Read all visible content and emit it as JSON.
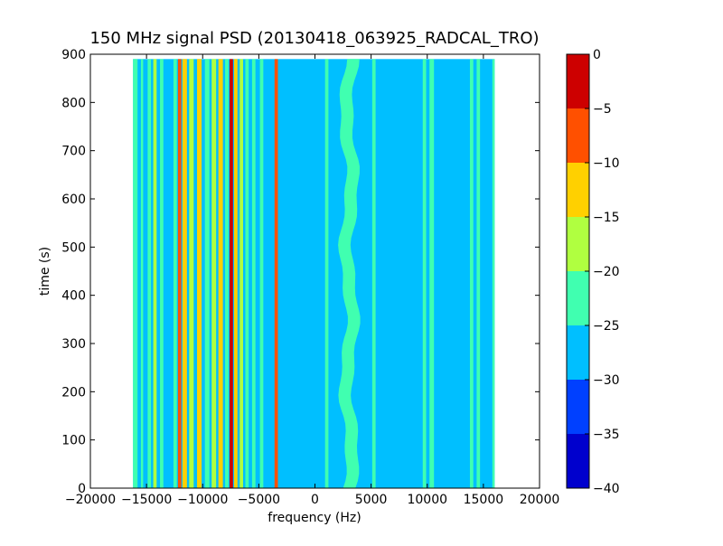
{
  "chart_data": {
    "type": "heatmap",
    "subtype": "filled-contour spectrogram",
    "title": "150 MHz signal PSD (20130418_063925_RADCAL_TRO)",
    "xlabel": "frequency (Hz)",
    "ylabel": "time (s)",
    "xlim": [
      -20000,
      20000
    ],
    "ylim": [
      0,
      900
    ],
    "x_ticks": [
      -20000,
      -15000,
      -10000,
      -5000,
      0,
      5000,
      10000,
      15000,
      20000
    ],
    "x_tick_labels": [
      "−20000",
      "−15000",
      "−10000",
      "−5000",
      "0",
      "5000",
      "10000",
      "15000",
      "20000"
    ],
    "y_ticks": [
      0,
      100,
      200,
      300,
      400,
      500,
      600,
      700,
      800,
      900
    ],
    "y_tick_labels": [
      "0",
      "100",
      "200",
      "300",
      "400",
      "500",
      "600",
      "700",
      "800",
      "900"
    ],
    "data_extent": {
      "freq_min": -16200,
      "freq_max": 16000,
      "time_min": 0,
      "time_max": 890
    },
    "background_level_color": "#00bfff",
    "colorbar": {
      "levels": [
        -40,
        -35,
        -30,
        -25,
        -20,
        -15,
        -10,
        -5,
        0
      ],
      "tick_labels": [
        "0",
        "−5",
        "−10",
        "−15",
        "−20",
        "−25",
        "−30",
        "−35",
        "−40"
      ],
      "colors": [
        "#0000cd",
        "#0040ff",
        "#00bfff",
        "#40ffb0",
        "#b0ff40",
        "#ffd000",
        "#ff5000",
        "#cd0000"
      ]
    },
    "features": [
      {
        "freq_start": -16200,
        "freq_end": -15800,
        "color": "#40ffb0",
        "kind": "band"
      },
      {
        "freq_start": -15500,
        "freq_end": -15300,
        "color": "#40ffb0",
        "kind": "band"
      },
      {
        "freq_start": -14900,
        "freq_end": -14600,
        "color": "#40ffb0",
        "kind": "band"
      },
      {
        "freq_start": -14400,
        "freq_end": -14100,
        "color": "#b0ff40",
        "kind": "band"
      },
      {
        "freq_start": -13800,
        "freq_end": -13500,
        "color": "#40ffb0",
        "kind": "band"
      },
      {
        "freq_start": -12600,
        "freq_end": -12300,
        "color": "#40ffb0",
        "kind": "band"
      },
      {
        "freq_start": -12200,
        "freq_end": -11900,
        "color": "#ff5000",
        "kind": "band"
      },
      {
        "freq_start": -11800,
        "freq_end": -11400,
        "color": "#ffd000",
        "kind": "band"
      },
      {
        "freq_start": -11200,
        "freq_end": -10800,
        "color": "#b0ff40",
        "kind": "band"
      },
      {
        "freq_start": -10500,
        "freq_end": -10100,
        "color": "#ffd000",
        "kind": "band"
      },
      {
        "freq_start": -9800,
        "freq_end": -9400,
        "color": "#40ffb0",
        "kind": "band"
      },
      {
        "freq_start": -9200,
        "freq_end": -8800,
        "color": "#b0ff40",
        "kind": "band"
      },
      {
        "freq_start": -8600,
        "freq_end": -8200,
        "color": "#ffd000",
        "kind": "band"
      },
      {
        "freq_start": -8000,
        "freq_end": -7700,
        "color": "#40ffb0",
        "kind": "band"
      },
      {
        "freq_start": -7600,
        "freq_end": -7300,
        "color": "#cd0000",
        "kind": "band"
      },
      {
        "freq_start": -7200,
        "freq_end": -6900,
        "color": "#ffd000",
        "kind": "band"
      },
      {
        "freq_start": -6700,
        "freq_end": -6400,
        "color": "#b0ff40",
        "kind": "band"
      },
      {
        "freq_start": -6200,
        "freq_end": -5900,
        "color": "#40ffb0",
        "kind": "band"
      },
      {
        "freq_start": -5600,
        "freq_end": -5300,
        "color": "#40ffb0",
        "kind": "band"
      },
      {
        "freq_start": -4900,
        "freq_end": -4600,
        "color": "#40ffb0",
        "kind": "band"
      },
      {
        "freq_start": -3600,
        "freq_end": -3300,
        "color": "#ff5000",
        "kind": "band"
      },
      {
        "freq_start": 900,
        "freq_end": 1200,
        "color": "#40ffb0",
        "kind": "band"
      },
      {
        "freq_start": 2500,
        "freq_end": 4500,
        "color": "#40ffb0",
        "kind": "wandering"
      },
      {
        "freq_start": 5100,
        "freq_end": 5400,
        "color": "#40ffb0",
        "kind": "band"
      },
      {
        "freq_start": 9600,
        "freq_end": 9900,
        "color": "#40ffb0",
        "kind": "band"
      },
      {
        "freq_start": 10200,
        "freq_end": 10600,
        "color": "#40ffb0",
        "kind": "band"
      },
      {
        "freq_start": 13800,
        "freq_end": 14100,
        "color": "#40ffb0",
        "kind": "band"
      },
      {
        "freq_start": 14400,
        "freq_end": 14700,
        "color": "#40ffb0",
        "kind": "band"
      },
      {
        "freq_start": 15800,
        "freq_end": 16000,
        "color": "#40ffb0",
        "kind": "band"
      }
    ]
  }
}
